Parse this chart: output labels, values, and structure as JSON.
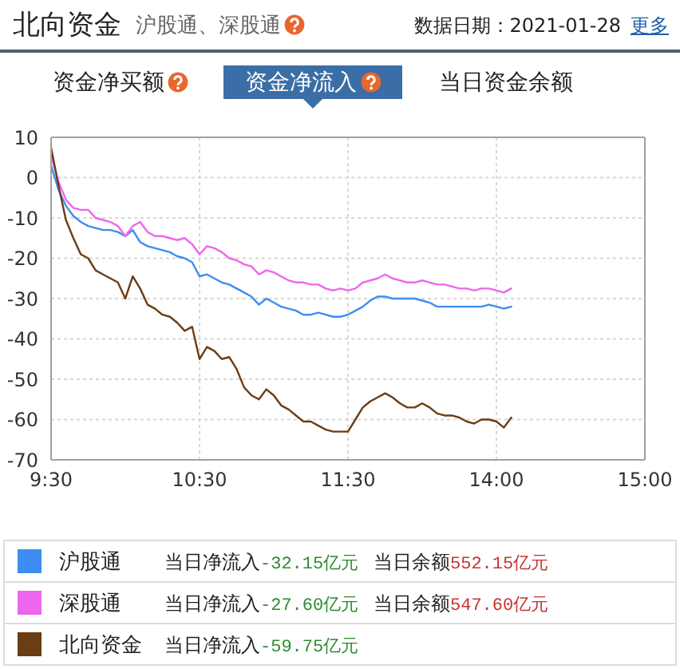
{
  "chart_data": {
    "type": "line",
    "title": "北向资金",
    "subtitle": "沪股通、深股通",
    "annotations": [
      "数据日期：2021-01-28",
      "更多",
      "资金净买额",
      "资金净流入",
      "当日资金余额",
      "当日净流入-32.15亿元",
      "当日余额552.15亿元",
      "当日净流入-27.60亿元",
      "当日余额547.60亿元",
      "当日净流入-59.75亿元"
    ],
    "categories": [
      "9:30",
      null,
      null,
      null,
      null,
      null,
      null,
      null,
      null,
      null,
      null,
      null,
      null,
      null,
      null,
      null,
      null,
      null,
      null,
      null,
      "10:30",
      null,
      null,
      null,
      null,
      null,
      null,
      null,
      null,
      null,
      null,
      null,
      null,
      null,
      null,
      null,
      null,
      null,
      null,
      null,
      "11:30",
      null,
      null,
      null,
      null,
      null,
      null,
      null,
      null,
      null,
      null,
      null,
      null,
      null,
      null,
      null,
      null,
      null,
      null,
      null,
      "14:00",
      null,
      null,
      null,
      null,
      null,
      null,
      null,
      null,
      null,
      null,
      null,
      null,
      null,
      null,
      null,
      null,
      null,
      null,
      null,
      "15:00"
    ],
    "ylim": [
      -70,
      10
    ],
    "yticks": [
      10,
      0,
      -10,
      -20,
      -30,
      -40,
      -50,
      -60,
      -70
    ],
    "grid": true,
    "legend": "bottom",
    "series": [
      {
        "name": "沪股通",
        "color": "#3d8ef0",
        "values": [
          3,
          -3,
          -7,
          -9.5,
          -11,
          -12,
          -12.5,
          -13,
          -13,
          -13.5,
          -14.5,
          -13,
          -16,
          -17,
          -17.5,
          -18,
          -18.5,
          -19.5,
          -20,
          -21,
          -24.5,
          -24,
          -25,
          -26,
          -26.5,
          -27.5,
          -28.5,
          -29.5,
          -31.5,
          -30,
          -31,
          -32,
          -32.5,
          -33,
          -34,
          -34,
          -33.5,
          -34,
          -34.5,
          -34.5,
          -34,
          -33,
          -32,
          -30.5,
          -29.5,
          -29.5,
          -30,
          -30,
          -30,
          -30,
          -30.5,
          -31,
          -32,
          -32,
          -32,
          -32,
          -32,
          -32,
          -32,
          -31.5,
          -32,
          -32.5,
          -32,
          null,
          null,
          null,
          null,
          null,
          null,
          null,
          null,
          null,
          null,
          null,
          null,
          null,
          null,
          null,
          null,
          null,
          null
        ]
      },
      {
        "name": "深股通",
        "color": "#ee66ee",
        "values": [
          5.5,
          -1,
          -5.5,
          -7.5,
          -8,
          -8,
          -10,
          -10.5,
          -11,
          -12,
          -14.5,
          -12,
          -11,
          -13.5,
          -14.5,
          -14.5,
          -15,
          -15.5,
          -15,
          -16.5,
          -19,
          -17,
          -17.5,
          -18.5,
          -20,
          -20.5,
          -21.5,
          -22,
          -24,
          -23,
          -23.5,
          -24.5,
          -25.5,
          -26,
          -26,
          -26.5,
          -26.5,
          -27.5,
          -28,
          -27.5,
          -28,
          -27.5,
          -26,
          -25.5,
          -25,
          -24,
          -25,
          -25.5,
          -26,
          -26,
          -25.5,
          -26,
          -26.5,
          -26.5,
          -27,
          -27.5,
          -27.5,
          -28,
          -27.5,
          -27.5,
          -28,
          -28.5,
          -27.5,
          null,
          null,
          null,
          null,
          null,
          null,
          null,
          null,
          null,
          null,
          null,
          null,
          null,
          null,
          null,
          null,
          null,
          null
        ]
      },
      {
        "name": "北向资金",
        "color": "#6b3d14",
        "values": [
          7.5,
          -2,
          -10.5,
          -15,
          -19,
          -20,
          -23,
          -24,
          -25,
          -26,
          -30,
          -24.5,
          -27.5,
          -31.5,
          -32.5,
          -34,
          -34.5,
          -36,
          -38,
          -37,
          -45,
          -42,
          -43,
          -45,
          -44.5,
          -47.5,
          -52,
          -54,
          -55,
          -52.5,
          -54,
          -56.5,
          -57.5,
          -59,
          -60.5,
          -60.5,
          -61.5,
          -62.5,
          -63,
          -63,
          -63,
          -60,
          -57,
          -55.5,
          -54.5,
          -53.5,
          -54.5,
          -56,
          -57,
          -57,
          -56,
          -57,
          -58.5,
          -59,
          -59,
          -59.5,
          -60.5,
          -61,
          -60,
          -60,
          -60.5,
          -62,
          -59.5,
          null,
          null,
          null,
          null,
          null,
          null,
          null,
          null,
          null,
          null,
          null,
          null,
          null,
          null,
          null,
          null,
          null,
          null
        ]
      }
    ]
  }
}
